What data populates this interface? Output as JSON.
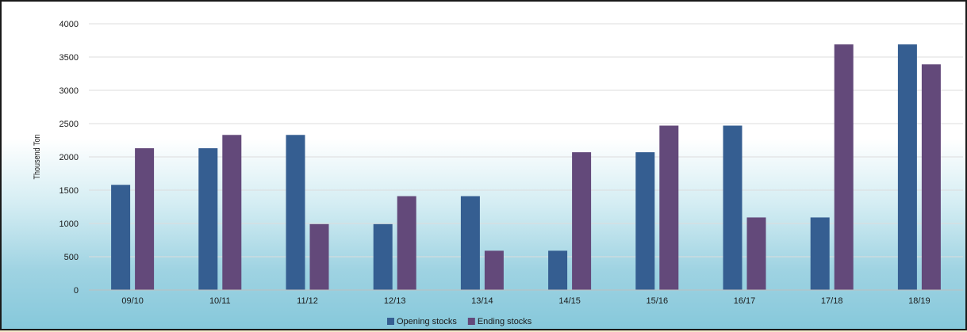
{
  "chart_data": {
    "type": "bar",
    "title": "",
    "xlabel": "",
    "ylabel": "Thousend Ton",
    "ylim": [
      0,
      4000
    ],
    "yticks": [
      0,
      500,
      1000,
      1500,
      2000,
      2500,
      3000,
      3500,
      4000
    ],
    "grid": true,
    "legend_position": "bottom",
    "categories": [
      "09/10",
      "10/11",
      "11/12",
      "12/13",
      "13/14",
      "14/15",
      "15/16",
      "16/17",
      "17/18",
      "18/19"
    ],
    "series": [
      {
        "name": "Opening stocks",
        "color": "#355e91",
        "values": [
          1580,
          2130,
          2330,
          990,
          1410,
          590,
          2070,
          2470,
          1090,
          3690
        ]
      },
      {
        "name": "Ending stocks",
        "color": "#63497a",
        "values": [
          2130,
          2330,
          990,
          1410,
          590,
          2070,
          2470,
          1090,
          3690,
          3390
        ]
      }
    ]
  }
}
